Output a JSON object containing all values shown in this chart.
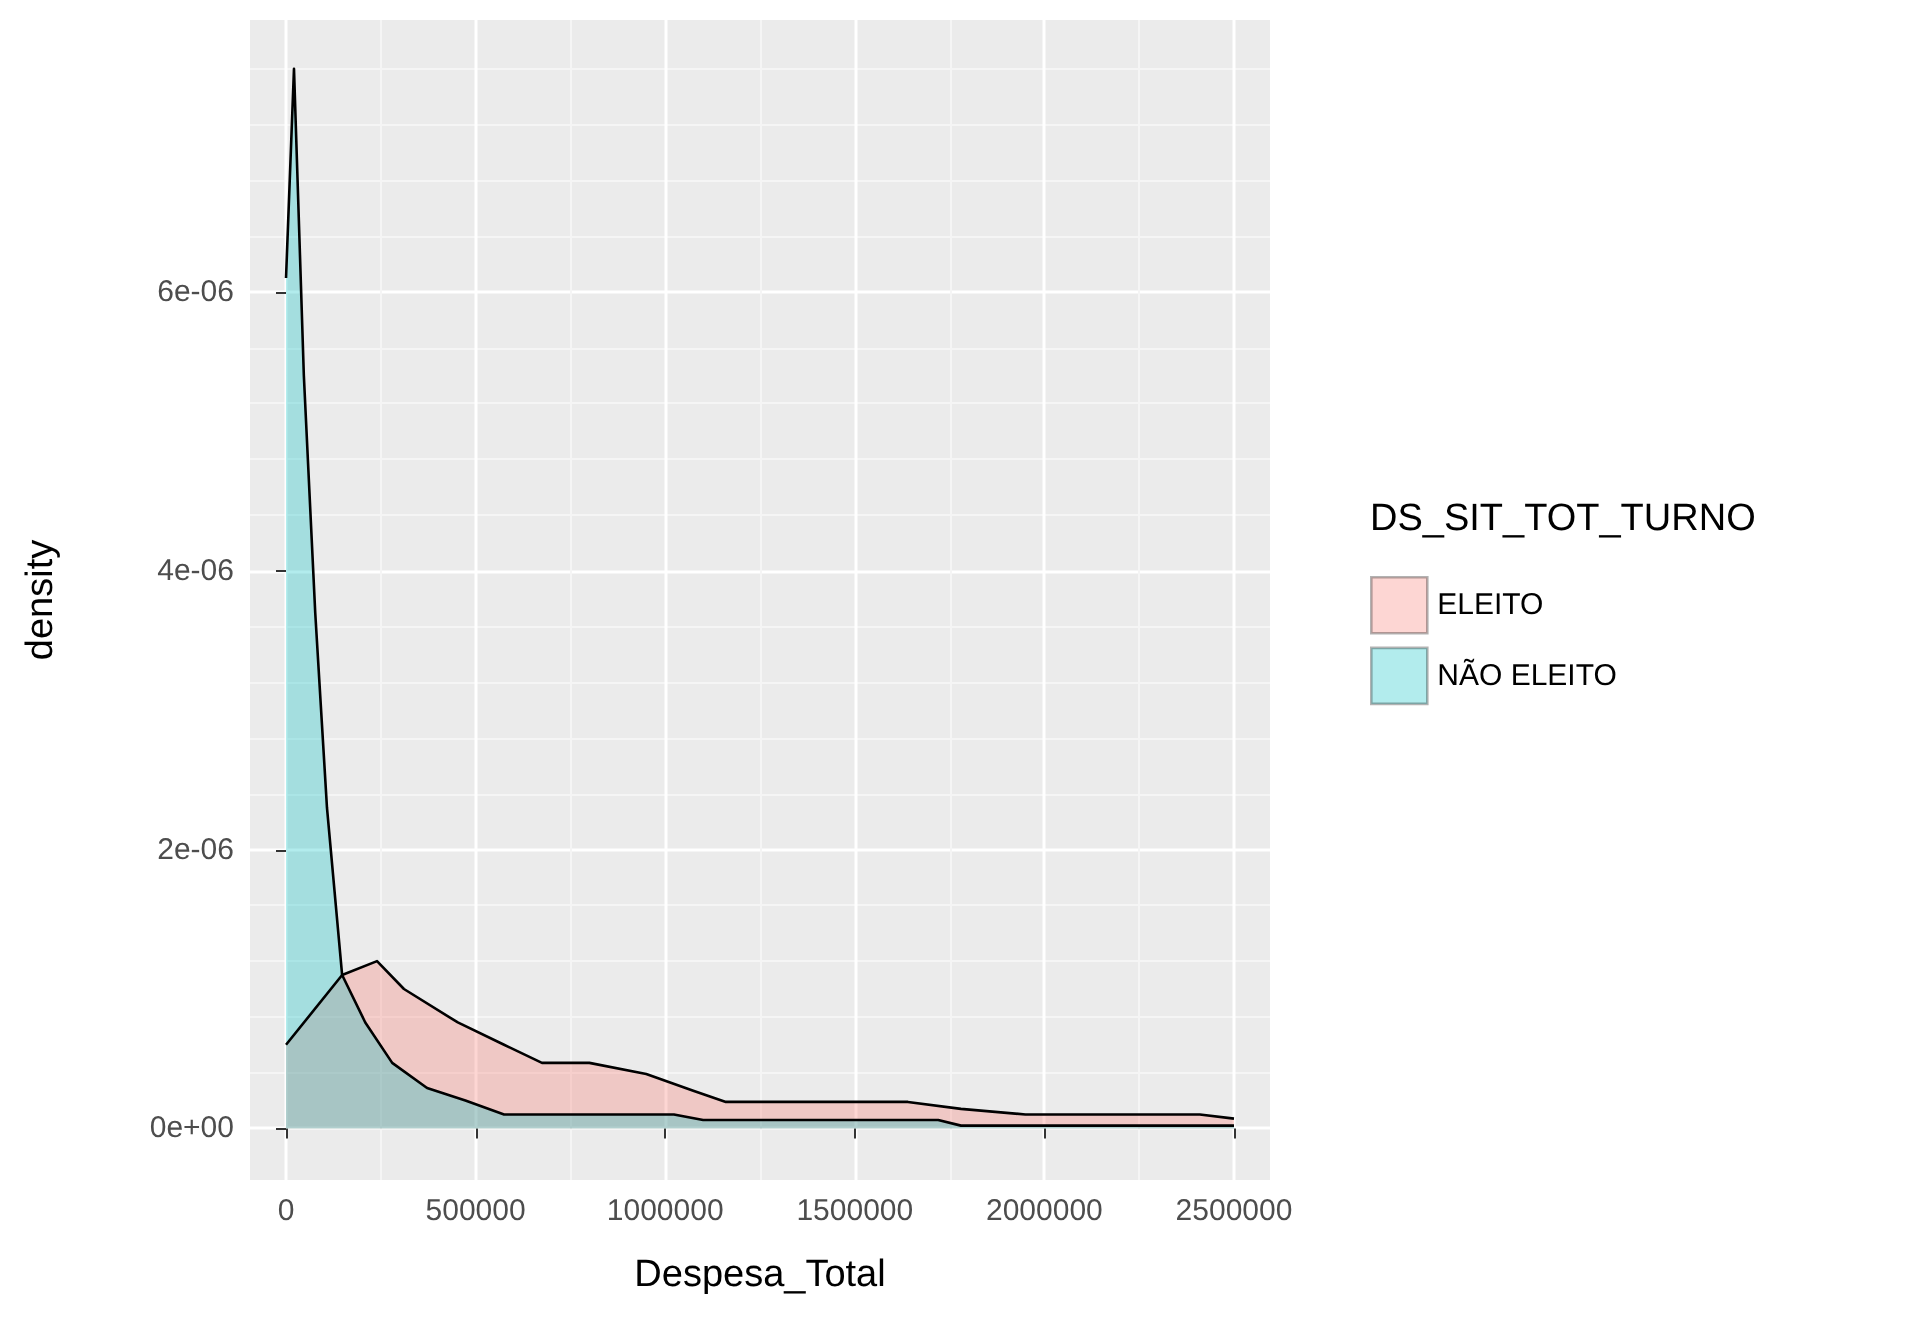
{
  "chart_data": {
    "type": "area",
    "xlabel": "Despesa_Total",
    "ylabel": "density",
    "legend_title": "DS_SIT_TOT_TURNO",
    "legend": "right",
    "grid": true,
    "marker": "none",
    "xlim": [
      -95000,
      2595000
    ],
    "ylim": [
      -3.7e-07,
      7.95e-06
    ],
    "xticks": [
      0,
      500000,
      1000000,
      1500000,
      2000000,
      2500000
    ],
    "yticks": [
      {
        "value": 0,
        "label": "0e+00"
      },
      {
        "value": 2e-06,
        "label": "2e-06"
      },
      {
        "value": 4e-06,
        "label": "4e-06"
      },
      {
        "value": 6e-06,
        "label": "6e-06"
      }
    ],
    "series": [
      {
        "name": "ELEITO",
        "color": "#f8766d",
        "x": [
          0,
          148000,
          240000,
          311000,
          453000,
          575000,
          675000,
          800000,
          950000,
          1074000,
          1160000,
          1640000,
          1780000,
          1950000,
          2410000,
          2500000
        ],
        "values": [
          6e-07,
          1.1e-06,
          1.2e-06,
          1e-06,
          7.6e-07,
          6e-07,
          4.7e-07,
          4.7e-07,
          3.9e-07,
          2.7e-07,
          1.9e-07,
          1.9e-07,
          1.4e-07,
          1e-07,
          1e-07,
          7e-08
        ]
      },
      {
        "name": "NÃO ELEITO",
        "color": "#00bfc4",
        "x": [
          0,
          21000,
          47000,
          77000,
          108000,
          148000,
          209000,
          280000,
          372000,
          473000,
          575000,
          757000,
          1023000,
          1100000,
          1210000,
          1720000,
          1780000,
          2500000
        ],
        "values": [
          6.1e-06,
          7.6e-06,
          5.4e-06,
          3.7e-06,
          2.3e-06,
          1.1e-06,
          7.6e-07,
          4.7e-07,
          2.9e-07,
          2e-07,
          1e-07,
          1e-07,
          1e-07,
          6e-08,
          6e-08,
          6e-08,
          2e-08,
          2e-08
        ]
      }
    ]
  }
}
